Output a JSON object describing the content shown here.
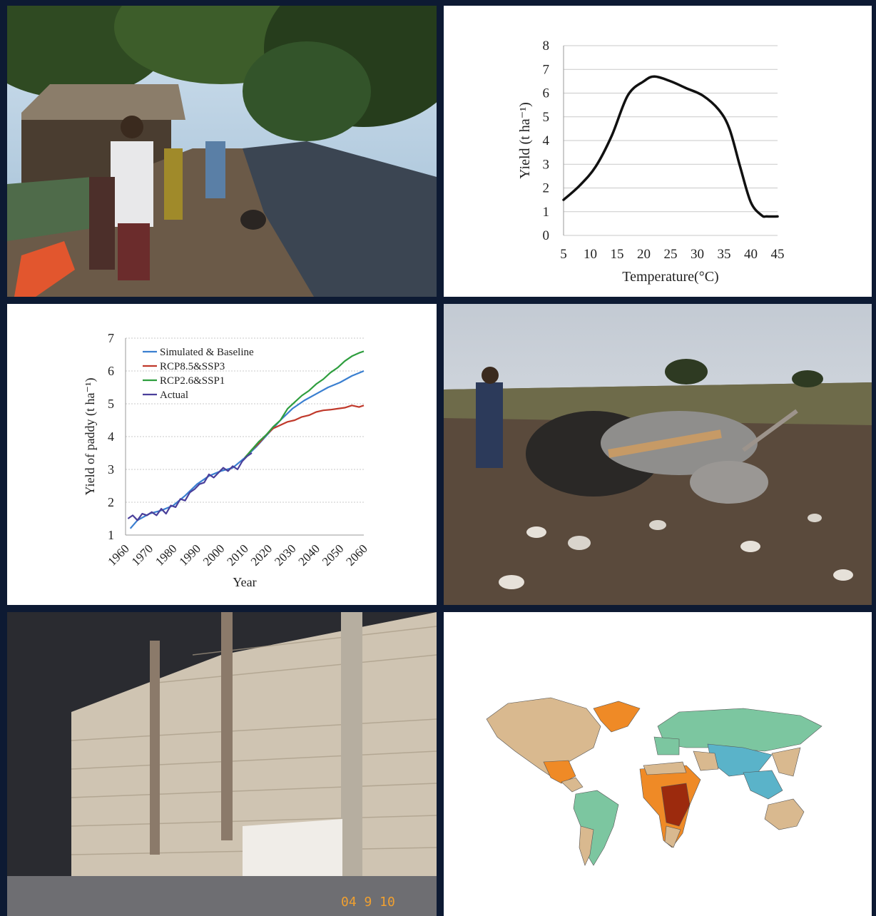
{
  "chart_data": [
    {
      "type": "line",
      "xlabel": "Temperature(°C)",
      "ylabel": "Yield (t ha⁻¹)",
      "xlim": [
        5,
        45
      ],
      "ylim": [
        0,
        8
      ],
      "x_ticks": [
        5,
        10,
        15,
        20,
        25,
        30,
        35,
        40,
        45
      ],
      "y_ticks": [
        0,
        1,
        2,
        3,
        4,
        5,
        6,
        7,
        8
      ],
      "grid": "horizontal",
      "series": [
        {
          "color": "#111111",
          "x": [
            5,
            8,
            11,
            14,
            17,
            20,
            22,
            25,
            28,
            31,
            34,
            36,
            38,
            40,
            42,
            43,
            45
          ],
          "y": [
            1.5,
            2.1,
            2.9,
            4.2,
            5.9,
            6.5,
            6.7,
            6.5,
            6.2,
            5.9,
            5.3,
            4.5,
            2.9,
            1.4,
            0.85,
            0.8,
            0.8
          ]
        }
      ]
    },
    {
      "type": "line",
      "xlabel": "Year",
      "ylabel": "Yield of paddy (t ha⁻¹)",
      "xlim": [
        1960,
        2060
      ],
      "ylim": [
        1,
        7
      ],
      "x_ticks": [
        1960,
        1970,
        1980,
        1990,
        2000,
        2010,
        2020,
        2030,
        2040,
        2050,
        2060
      ],
      "y_ticks": [
        1,
        2,
        3,
        4,
        5,
        6,
        7
      ],
      "grid": "horizontal",
      "legend": "top-left",
      "series": [
        {
          "name": "Simulated & Baseline",
          "color": "#3a7fd0",
          "x": [
            1962,
            1965,
            1970,
            1975,
            1980,
            1985,
            1990,
            1995,
            2000,
            2005,
            2010,
            2015,
            2020,
            2025,
            2030,
            2035,
            2040,
            2045,
            2050,
            2055,
            2060
          ],
          "y": [
            1.2,
            1.45,
            1.65,
            1.75,
            1.9,
            2.2,
            2.55,
            2.8,
            2.95,
            3.05,
            3.35,
            3.7,
            4.1,
            4.5,
            4.85,
            5.1,
            5.3,
            5.5,
            5.65,
            5.85,
            6.0
          ]
        },
        {
          "name": "RCP8.5&SSP3",
          "color": "#c0392b",
          "x": [
            2010,
            2013,
            2016,
            2019,
            2022,
            2025,
            2028,
            2031,
            2034,
            2037,
            2040,
            2043,
            2046,
            2049,
            2052,
            2055,
            2058,
            2060
          ],
          "y": [
            3.35,
            3.6,
            3.8,
            4.05,
            4.25,
            4.35,
            4.45,
            4.5,
            4.6,
            4.65,
            4.75,
            4.8,
            4.82,
            4.85,
            4.88,
            4.95,
            4.9,
            4.95
          ]
        },
        {
          "name": "RCP2.6&SSP1",
          "color": "#2e9e3e",
          "x": [
            2010,
            2013,
            2016,
            2019,
            2022,
            2025,
            2028,
            2031,
            2034,
            2037,
            2040,
            2043,
            2046,
            2049,
            2052,
            2055,
            2058,
            2060
          ],
          "y": [
            3.35,
            3.6,
            3.85,
            4.05,
            4.3,
            4.5,
            4.85,
            5.05,
            5.25,
            5.4,
            5.6,
            5.75,
            5.95,
            6.1,
            6.3,
            6.45,
            6.55,
            6.6
          ]
        },
        {
          "name": "Actual",
          "color": "#4a3f9a",
          "x": [
            1961,
            1963,
            1965,
            1967,
            1969,
            1971,
            1973,
            1975,
            1977,
            1979,
            1981,
            1983,
            1985,
            1987,
            1989,
            1991,
            1993,
            1995,
            1997,
            1999,
            2001,
            2003,
            2005,
            2007,
            2009,
            2011,
            2013
          ],
          "y": [
            1.5,
            1.6,
            1.45,
            1.65,
            1.6,
            1.7,
            1.6,
            1.8,
            1.65,
            1.9,
            1.85,
            2.1,
            2.05,
            2.3,
            2.4,
            2.55,
            2.6,
            2.85,
            2.75,
            2.9,
            3.05,
            2.95,
            3.1,
            3.0,
            3.25,
            3.4,
            3.5
          ]
        }
      ]
    }
  ],
  "photos": {
    "top_left": "flooded-village-road",
    "middle_right": "ox-plough-field",
    "bottom_left": "grain-sack-warehouse",
    "bottom_right": "world-map"
  },
  "photo_stamp": "04 9 10",
  "map_colors": {
    "tan": "#d9b98f",
    "green": "#7cc6a0",
    "teal": "#5ab3c9",
    "orange": "#ef8a26",
    "darkred": "#9c2a0d"
  }
}
